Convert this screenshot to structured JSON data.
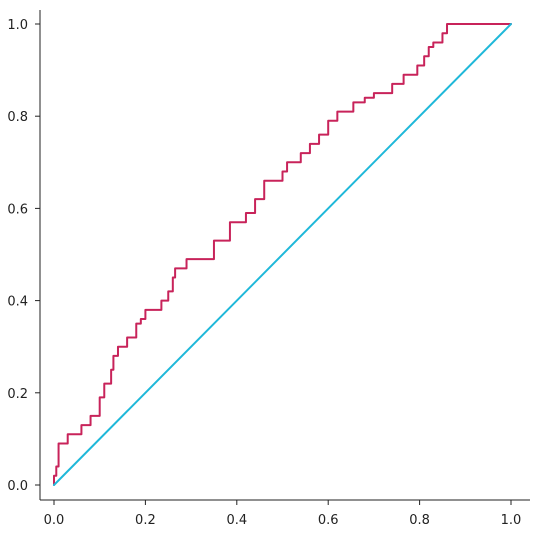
{
  "chart_data": {
    "type": "line",
    "title": "",
    "xlabel": "",
    "ylabel": "",
    "xlim": [
      0,
      1
    ],
    "ylim": [
      0,
      1
    ],
    "x_ticks": [
      "0.0",
      "0.2",
      "0.4",
      "0.6",
      "0.8",
      "1.0"
    ],
    "y_ticks": [
      "0.0",
      "0.2",
      "0.4",
      "0.6",
      "0.8",
      "1.0"
    ],
    "grid": false,
    "legend": "none",
    "series": [
      {
        "color": "#c8235a",
        "step": true,
        "points": [
          [
            0.0,
            0.0
          ],
          [
            0.0,
            0.02
          ],
          [
            0.005,
            0.02
          ],
          [
            0.005,
            0.04
          ],
          [
            0.01,
            0.04
          ],
          [
            0.01,
            0.09
          ],
          [
            0.03,
            0.09
          ],
          [
            0.03,
            0.11
          ],
          [
            0.06,
            0.11
          ],
          [
            0.06,
            0.13
          ],
          [
            0.08,
            0.13
          ],
          [
            0.08,
            0.15
          ],
          [
            0.1,
            0.15
          ],
          [
            0.1,
            0.19
          ],
          [
            0.11,
            0.19
          ],
          [
            0.11,
            0.22
          ],
          [
            0.125,
            0.22
          ],
          [
            0.125,
            0.25
          ],
          [
            0.13,
            0.25
          ],
          [
            0.13,
            0.28
          ],
          [
            0.14,
            0.28
          ],
          [
            0.14,
            0.3
          ],
          [
            0.16,
            0.3
          ],
          [
            0.16,
            0.32
          ],
          [
            0.18,
            0.32
          ],
          [
            0.18,
            0.35
          ],
          [
            0.19,
            0.35
          ],
          [
            0.19,
            0.36
          ],
          [
            0.2,
            0.36
          ],
          [
            0.2,
            0.38
          ],
          [
            0.235,
            0.38
          ],
          [
            0.235,
            0.4
          ],
          [
            0.25,
            0.4
          ],
          [
            0.25,
            0.42
          ],
          [
            0.26,
            0.42
          ],
          [
            0.26,
            0.45
          ],
          [
            0.265,
            0.45
          ],
          [
            0.265,
            0.47
          ],
          [
            0.29,
            0.47
          ],
          [
            0.29,
            0.49
          ],
          [
            0.35,
            0.49
          ],
          [
            0.35,
            0.53
          ],
          [
            0.385,
            0.53
          ],
          [
            0.385,
            0.57
          ],
          [
            0.42,
            0.57
          ],
          [
            0.42,
            0.59
          ],
          [
            0.44,
            0.59
          ],
          [
            0.44,
            0.62
          ],
          [
            0.46,
            0.62
          ],
          [
            0.46,
            0.66
          ],
          [
            0.5,
            0.66
          ],
          [
            0.5,
            0.68
          ],
          [
            0.51,
            0.68
          ],
          [
            0.51,
            0.7
          ],
          [
            0.54,
            0.7
          ],
          [
            0.54,
            0.72
          ],
          [
            0.56,
            0.72
          ],
          [
            0.56,
            0.74
          ],
          [
            0.58,
            0.74
          ],
          [
            0.58,
            0.76
          ],
          [
            0.6,
            0.76
          ],
          [
            0.6,
            0.79
          ],
          [
            0.62,
            0.79
          ],
          [
            0.62,
            0.81
          ],
          [
            0.655,
            0.81
          ],
          [
            0.655,
            0.83
          ],
          [
            0.68,
            0.83
          ],
          [
            0.68,
            0.84
          ],
          [
            0.7,
            0.84
          ],
          [
            0.7,
            0.85
          ],
          [
            0.74,
            0.85
          ],
          [
            0.74,
            0.87
          ],
          [
            0.765,
            0.87
          ],
          [
            0.765,
            0.89
          ],
          [
            0.795,
            0.89
          ],
          [
            0.795,
            0.91
          ],
          [
            0.81,
            0.91
          ],
          [
            0.81,
            0.93
          ],
          [
            0.82,
            0.93
          ],
          [
            0.82,
            0.95
          ],
          [
            0.83,
            0.95
          ],
          [
            0.83,
            0.96
          ],
          [
            0.85,
            0.96
          ],
          [
            0.85,
            0.98
          ],
          [
            0.86,
            0.98
          ],
          [
            0.86,
            1.0
          ],
          [
            1.0,
            1.0
          ]
        ]
      },
      {
        "color": "#1fb8d9",
        "step": false,
        "points": [
          [
            0.0,
            0.0
          ],
          [
            1.0,
            1.0
          ]
        ]
      }
    ]
  }
}
